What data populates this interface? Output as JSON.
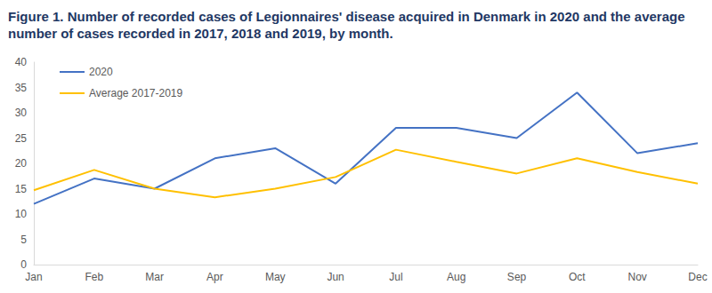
{
  "chart_data": {
    "type": "line",
    "title": "Figure 1. Number of recorded cases of Legionnaires' disease acquired in Denmark in 2020 and the average number of cases recorded in 2017, 2018 and 2019, by month.",
    "categories": [
      "Jan",
      "Feb",
      "Mar",
      "Apr",
      "May",
      "Jun",
      "Jul",
      "Aug",
      "Sep",
      "Oct",
      "Nov",
      "Dec"
    ],
    "series": [
      {
        "name": "2020",
        "color": "#4472c4",
        "values": [
          12,
          17,
          15,
          21,
          23,
          16,
          27,
          27,
          25,
          34,
          22,
          24
        ]
      },
      {
        "name": "Average 2017-2019",
        "color": "#ffc000",
        "values": [
          14.7,
          18.7,
          15,
          13.3,
          15,
          17.3,
          22.7,
          20.3,
          18,
          21,
          18.3,
          16
        ]
      }
    ],
    "ylim": [
      0,
      40
    ],
    "yticks": [
      0,
      5,
      10,
      15,
      20,
      25,
      30,
      35,
      40
    ],
    "grid": false,
    "legend": "top-left"
  }
}
